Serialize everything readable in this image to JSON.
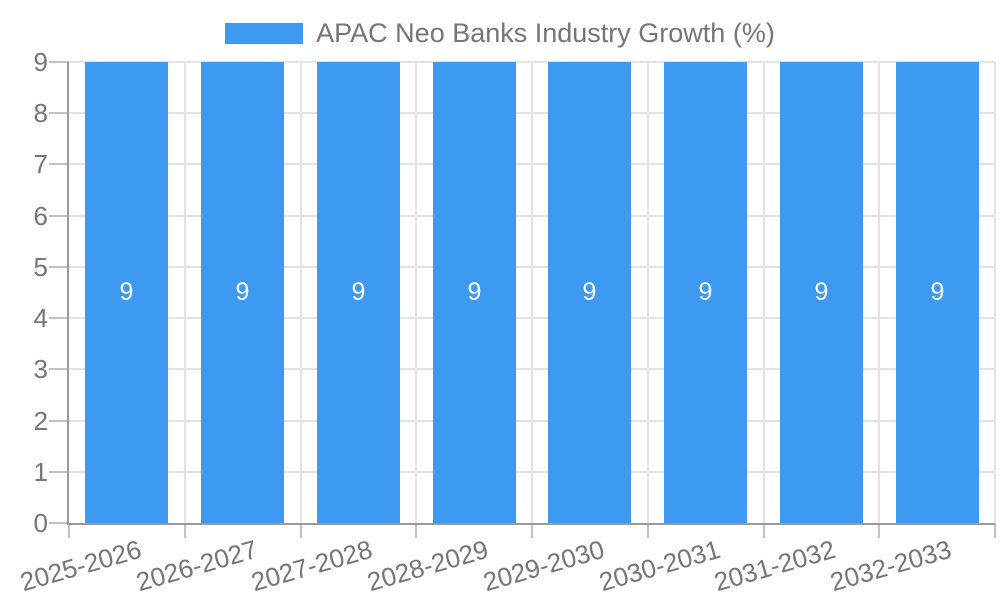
{
  "chart_data": {
    "type": "bar",
    "title": "APAC Neo Banks Industry Growth (%)",
    "categories": [
      "2025-2026",
      "2026-2027",
      "2027-2028",
      "2028-2029",
      "2029-2030",
      "2030-2031",
      "2031-2032",
      "2032-2033"
    ],
    "values": [
      9,
      9,
      9,
      9,
      9,
      9,
      9,
      9
    ],
    "bar_value_labels": [
      "9",
      "9",
      "9",
      "9",
      "9",
      "9",
      "9",
      "9"
    ],
    "xlabel": "",
    "ylabel": "",
    "ylim": [
      0,
      9
    ],
    "yticks": [
      0,
      1,
      2,
      3,
      4,
      5,
      6,
      7,
      8,
      9
    ],
    "grid": true,
    "legend": {
      "position": "top",
      "label": "APAC Neo Banks Industry Growth (%)"
    },
    "colors": {
      "bar": "#3D9AF0",
      "bar_label": "#FFFFFF",
      "axis_line": "#9A9A9A",
      "tick": "#C2C2C2",
      "gridline": "#E3E3E3",
      "text": "#757575",
      "background": "#FFFFFF"
    }
  }
}
